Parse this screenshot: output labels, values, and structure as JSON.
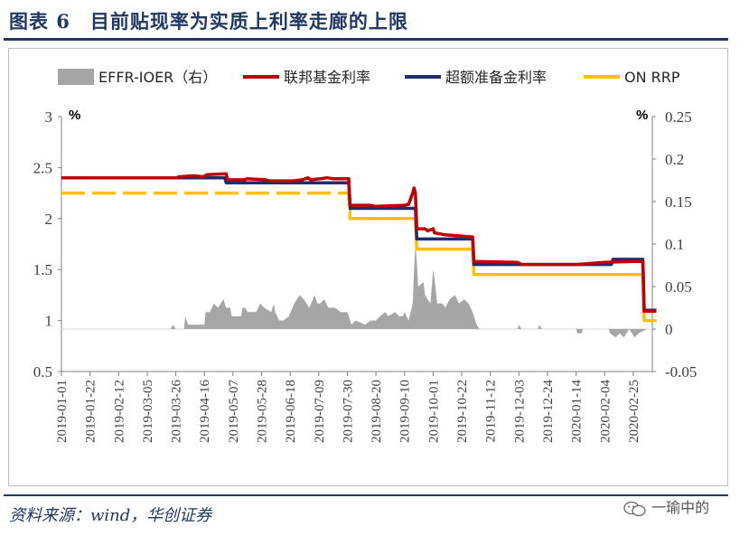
{
  "header": {
    "title": "图表 6　目前贴现率为实质上利率走廊的上限"
  },
  "footer": {
    "source": "资料来源：wind，华创证券",
    "watermark": "一瑜中的"
  },
  "chart_data": {
    "type": "line",
    "title": "",
    "left_axis": {
      "unit": "%",
      "ylim": [
        0.5,
        3
      ],
      "ticks": [
        "0.5",
        "1",
        "1.5",
        "2",
        "2.5",
        "3"
      ]
    },
    "right_axis": {
      "unit": "%",
      "ylim": [
        -0.05,
        0.25
      ],
      "ticks": [
        "-0.05",
        "0",
        "0.05",
        "0.1",
        "0.15",
        "0.2",
        "0.25"
      ]
    },
    "x_tick_labels": [
      "2019-01-01",
      "2019-01-22",
      "2019-02-12",
      "2019-03-05",
      "2019-03-26",
      "2019-04-16",
      "2019-05-07",
      "2019-05-28",
      "2019-06-18",
      "2019-07-09",
      "2019-07-30",
      "2019-08-20",
      "2019-09-10",
      "2019-10-01",
      "2019-10-22",
      "2019-11-12",
      "2019-12-03",
      "2019-12-24",
      "2020-01-14",
      "2020-02-04",
      "2020-02-25"
    ],
    "legend": {
      "position": "top",
      "items": [
        {
          "name": "EFFR-IOER（右）",
          "kind": "area",
          "color": "#a6a6a6"
        },
        {
          "name": "联邦基金利率",
          "kind": "line",
          "color": "#c00000"
        },
        {
          "name": "超额准备金利率",
          "kind": "line",
          "color": "#1f2d6b"
        },
        {
          "name": "ON RRP",
          "kind": "line",
          "color": "#ffc000"
        }
      ]
    },
    "series": [
      {
        "name": "EFFR-IOER（右）",
        "axis": "right",
        "color": "#a6a6a6",
        "points": [
          [
            "2019-01-01",
            0
          ],
          [
            "2019-03-22",
            0
          ],
          [
            "2019-03-24",
            0.005
          ],
          [
            "2019-03-26",
            0
          ],
          [
            "2019-04-01",
            0
          ],
          [
            "2019-04-02",
            0.015
          ],
          [
            "2019-04-04",
            0.005
          ],
          [
            "2019-04-16",
            0.005
          ],
          [
            "2019-04-17",
            0.02
          ],
          [
            "2019-04-20",
            0.02
          ],
          [
            "2019-04-23",
            0.03
          ],
          [
            "2019-04-26",
            0.025
          ],
          [
            "2019-04-30",
            0.035
          ],
          [
            "2019-05-02",
            0.025
          ],
          [
            "2019-05-05",
            0.025
          ],
          [
            "2019-05-06",
            0.015
          ],
          [
            "2019-05-13",
            0.015
          ],
          [
            "2019-05-14",
            0.025
          ],
          [
            "2019-05-16",
            0.025
          ],
          [
            "2019-05-18",
            0.02
          ],
          [
            "2019-05-24",
            0.02
          ],
          [
            "2019-05-27",
            0.03
          ],
          [
            "2019-05-30",
            0.025
          ],
          [
            "2019-06-04",
            0.02
          ],
          [
            "2019-06-06",
            0.03
          ],
          [
            "2019-06-07",
            0.02
          ],
          [
            "2019-06-10",
            0.01
          ],
          [
            "2019-06-13",
            0.01
          ],
          [
            "2019-06-17",
            0.015
          ],
          [
            "2019-06-21",
            0.03
          ],
          [
            "2019-06-25",
            0.04
          ],
          [
            "2019-06-28",
            0.035
          ],
          [
            "2019-07-02",
            0.025
          ],
          [
            "2019-07-06",
            0.04
          ],
          [
            "2019-07-08",
            0.03
          ],
          [
            "2019-07-10",
            0.03
          ],
          [
            "2019-07-13",
            0.035
          ],
          [
            "2019-07-16",
            0.025
          ],
          [
            "2019-07-21",
            0.025
          ],
          [
            "2019-07-25",
            0.02
          ],
          [
            "2019-07-30",
            0.02
          ],
          [
            "2019-07-31",
            0.015
          ],
          [
            "2019-08-02",
            0.005
          ],
          [
            "2019-08-05",
            0.01
          ],
          [
            "2019-08-12",
            0.005
          ],
          [
            "2019-08-16",
            0.01
          ],
          [
            "2019-08-20",
            0.01
          ],
          [
            "2019-08-23",
            0.015
          ],
          [
            "2019-08-27",
            0.02
          ],
          [
            "2019-08-29",
            0.015
          ],
          [
            "2019-09-03",
            0.02
          ],
          [
            "2019-09-06",
            0.015
          ],
          [
            "2019-09-09",
            0.015
          ],
          [
            "2019-09-10",
            0.02
          ],
          [
            "2019-09-13",
            0.01
          ],
          [
            "2019-09-16",
            0.03
          ],
          [
            "2019-09-17",
            0.07
          ],
          [
            "2019-09-18",
            0.1
          ],
          [
            "2019-09-19",
            0.08
          ],
          [
            "2019-09-20",
            0.05
          ],
          [
            "2019-09-24",
            0.055
          ],
          [
            "2019-09-25",
            0.04
          ],
          [
            "2019-09-27",
            0.035
          ],
          [
            "2019-09-29",
            0.03
          ],
          [
            "2019-10-01",
            0.07
          ],
          [
            "2019-10-02",
            0.06
          ],
          [
            "2019-10-04",
            0.03
          ],
          [
            "2019-10-08",
            0.03
          ],
          [
            "2019-10-10",
            0.025
          ],
          [
            "2019-10-13",
            0.035
          ],
          [
            "2019-10-17",
            0.04
          ],
          [
            "2019-10-20",
            0.03
          ],
          [
            "2019-10-24",
            0.035
          ],
          [
            "2019-10-27",
            0.03
          ],
          [
            "2019-10-30",
            0.02
          ],
          [
            "2019-11-02",
            0.005
          ],
          [
            "2019-11-04",
            0
          ],
          [
            "2019-12-02",
            0
          ],
          [
            "2019-12-03",
            0.005
          ],
          [
            "2019-12-05",
            0
          ],
          [
            "2019-12-17",
            0
          ],
          [
            "2019-12-18",
            0.005
          ],
          [
            "2019-12-20",
            0
          ],
          [
            "2020-01-14",
            0
          ],
          [
            "2020-01-15",
            -0.005
          ],
          [
            "2020-01-18",
            -0.005
          ],
          [
            "2020-01-19",
            0
          ],
          [
            "2020-02-07",
            0
          ],
          [
            "2020-02-08",
            -0.005
          ],
          [
            "2020-02-12",
            -0.01
          ],
          [
            "2020-02-15",
            -0.005
          ],
          [
            "2020-02-18",
            -0.01
          ],
          [
            "2020-02-22",
            0
          ],
          [
            "2020-02-26",
            -0.01
          ],
          [
            "2020-02-29",
            -0.005
          ],
          [
            "2020-03-06",
            0
          ],
          [
            "2020-03-13",
            0
          ]
        ]
      },
      {
        "name": "联邦基金利率",
        "axis": "left",
        "color": "#c00000",
        "points": [
          [
            "2019-01-01",
            2.4
          ],
          [
            "2019-03-27",
            2.4
          ],
          [
            "2019-03-28",
            2.41
          ],
          [
            "2019-04-08",
            2.42
          ],
          [
            "2019-04-15",
            2.41
          ],
          [
            "2019-04-18",
            2.43
          ],
          [
            "2019-05-02",
            2.44
          ],
          [
            "2019-05-03",
            2.38
          ],
          [
            "2019-05-16",
            2.38
          ],
          [
            "2019-05-17",
            2.39
          ],
          [
            "2019-05-31",
            2.38
          ],
          [
            "2019-06-03",
            2.37
          ],
          [
            "2019-06-20",
            2.37
          ],
          [
            "2019-06-27",
            2.38
          ],
          [
            "2019-07-01",
            2.4
          ],
          [
            "2019-07-03",
            2.38
          ],
          [
            "2019-07-10",
            2.39
          ],
          [
            "2019-07-15",
            2.4
          ],
          [
            "2019-07-20",
            2.39
          ],
          [
            "2019-07-31",
            2.39
          ],
          [
            "2019-08-01",
            2.13
          ],
          [
            "2019-08-15",
            2.13
          ],
          [
            "2019-08-20",
            2.12
          ],
          [
            "2019-09-10",
            2.13
          ],
          [
            "2019-09-13",
            2.14
          ],
          [
            "2019-09-16",
            2.25
          ],
          [
            "2019-09-17",
            2.3
          ],
          [
            "2019-09-18",
            2.25
          ],
          [
            "2019-09-19",
            1.9
          ],
          [
            "2019-09-25",
            1.9
          ],
          [
            "2019-09-27",
            1.88
          ],
          [
            "2019-10-01",
            1.9
          ],
          [
            "2019-10-02",
            1.86
          ],
          [
            "2019-10-10",
            1.84
          ],
          [
            "2019-10-20",
            1.83
          ],
          [
            "2019-10-30",
            1.82
          ],
          [
            "2019-10-31",
            1.58
          ],
          [
            "2019-12-02",
            1.57
          ],
          [
            "2019-12-05",
            1.55
          ],
          [
            "2019-12-31",
            1.55
          ],
          [
            "2020-01-14",
            1.55
          ],
          [
            "2020-02-04",
            1.57
          ],
          [
            "2020-02-25",
            1.58
          ],
          [
            "2020-03-03",
            1.58
          ],
          [
            "2020-03-04",
            1.09
          ],
          [
            "2020-03-13",
            1.09
          ]
        ]
      },
      {
        "name": "超额准备金利率",
        "axis": "left",
        "color": "#1f2d6b",
        "points": [
          [
            "2019-01-01",
            2.4
          ],
          [
            "2019-05-01",
            2.4
          ],
          [
            "2019-05-02",
            2.35
          ],
          [
            "2019-07-31",
            2.35
          ],
          [
            "2019-08-01",
            2.1
          ],
          [
            "2019-09-18",
            2.1
          ],
          [
            "2019-09-19",
            1.8
          ],
          [
            "2019-10-30",
            1.8
          ],
          [
            "2019-10-31",
            1.55
          ],
          [
            "2020-02-09",
            1.55
          ],
          [
            "2020-02-10",
            1.6
          ],
          [
            "2020-03-03",
            1.6
          ],
          [
            "2020-03-04",
            1.1
          ],
          [
            "2020-03-13",
            1.1
          ]
        ]
      },
      {
        "name": "ON RRP",
        "axis": "left",
        "color": "#ffc000",
        "points": [
          [
            "2019-01-01",
            2.25
          ],
          [
            "2019-07-31",
            2.25
          ],
          [
            "2019-08-01",
            2.0
          ],
          [
            "2019-09-18",
            2.0
          ],
          [
            "2019-09-19",
            1.7
          ],
          [
            "2019-10-30",
            1.7
          ],
          [
            "2019-10-31",
            1.45
          ],
          [
            "2020-03-03",
            1.45
          ],
          [
            "2020-03-04",
            1.0
          ],
          [
            "2020-03-13",
            1.0
          ]
        ]
      }
    ]
  }
}
